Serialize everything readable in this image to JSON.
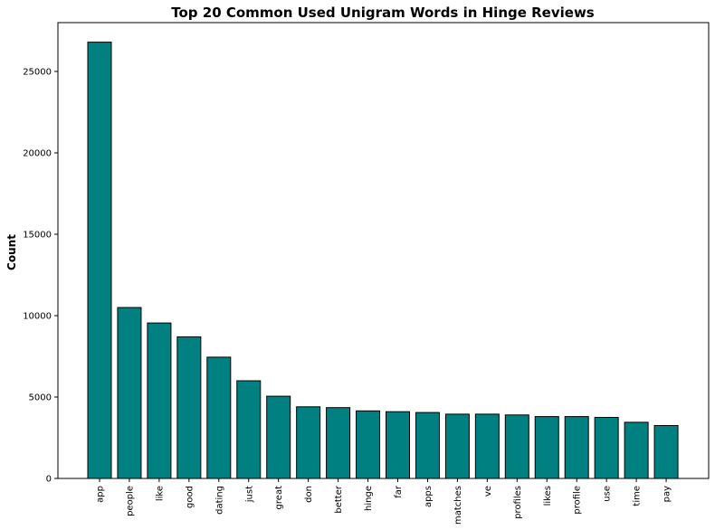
{
  "chart_data": {
    "type": "bar",
    "title": "Top 20 Common Used Unigram Words in Hinge Reviews",
    "xlabel": "",
    "ylabel": "Count",
    "categories": [
      "app",
      "people",
      "like",
      "good",
      "dating",
      "just",
      "great",
      "don",
      "better",
      "hinge",
      "far",
      "apps",
      "matches",
      "ve",
      "profiles",
      "likes",
      "profile",
      "use",
      "time",
      "pay"
    ],
    "values": [
      26800,
      10500,
      9550,
      8700,
      7450,
      6000,
      5050,
      4400,
      4350,
      4150,
      4100,
      4050,
      3950,
      3950,
      3900,
      3800,
      3800,
      3750,
      3450,
      3250
    ],
    "ylim": [
      0,
      28000
    ],
    "yticks": [
      0,
      5000,
      10000,
      15000,
      20000,
      25000
    ],
    "bar_color": "#008080",
    "edge_color": "#000000",
    "grid": false,
    "legend": "none"
  }
}
